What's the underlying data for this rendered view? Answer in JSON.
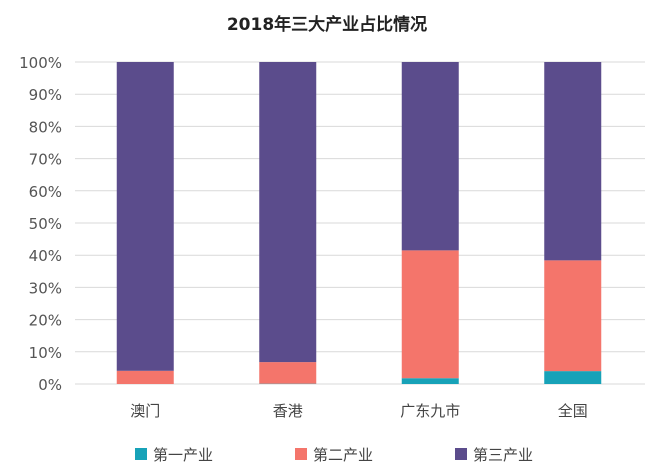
{
  "chart_data": {
    "type": "bar",
    "stacked": true,
    "percent": true,
    "title": "2018年三大产业占比情况",
    "categories": [
      "澳门",
      "香港",
      "广东九市",
      "全国"
    ],
    "series": [
      {
        "name": "第一产业",
        "color": "#17A2B8",
        "values": [
          0.0,
          0.1,
          1.8,
          4.0
        ]
      },
      {
        "name": "第二产业",
        "color": "#F4756B",
        "values": [
          4.1,
          6.7,
          39.7,
          34.4
        ]
      },
      {
        "name": "第三产业",
        "color": "#5B4C8C",
        "values": [
          95.9,
          93.2,
          58.5,
          61.6
        ]
      }
    ],
    "yticks": [
      "0%",
      "10%",
      "20%",
      "30%",
      "40%",
      "50%",
      "60%",
      "70%",
      "80%",
      "90%",
      "100%"
    ],
    "ylim": [
      0,
      100
    ],
    "grid": true,
    "legend": "bottom"
  }
}
